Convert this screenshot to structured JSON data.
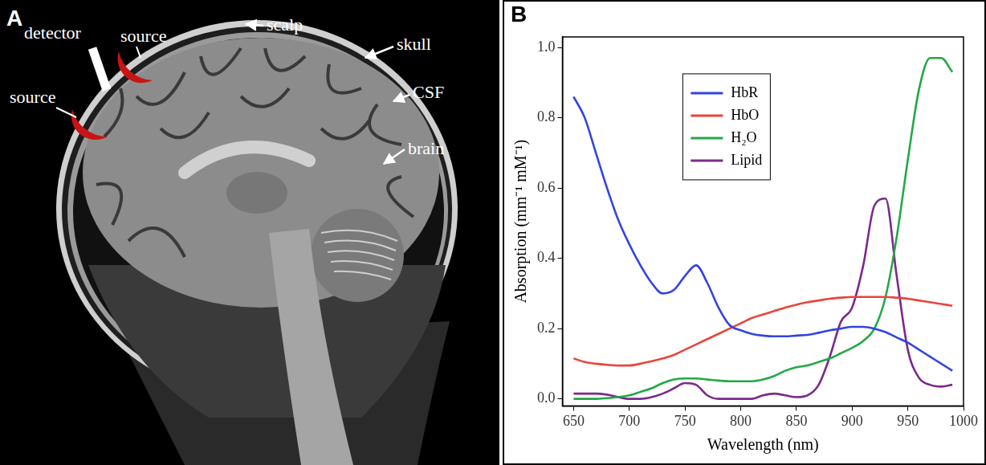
{
  "figure": {
    "panel_a": {
      "letter": "A",
      "structures": [
        "scalp",
        "skull",
        "CSF",
        "brain"
      ],
      "probe": {
        "detector": "detector",
        "sources": [
          "source",
          "source"
        ]
      }
    },
    "panel_b": {
      "letter": "B"
    }
  },
  "chart_data": {
    "type": "line",
    "xlabel": "Wavelength (nm)",
    "ylabel": "Absorption (mm⁻¹ mM⁻¹)",
    "x": [
      650,
      660,
      670,
      680,
      690,
      700,
      710,
      720,
      730,
      740,
      750,
      760,
      770,
      780,
      790,
      800,
      810,
      820,
      830,
      840,
      850,
      860,
      870,
      880,
      890,
      900,
      910,
      920,
      930,
      940,
      950,
      960,
      970,
      980,
      990
    ],
    "series": [
      {
        "name": "HbR",
        "color": "#3344e0",
        "values": [
          0.86,
          0.8,
          0.7,
          0.6,
          0.51,
          0.44,
          0.38,
          0.33,
          0.3,
          0.31,
          0.35,
          0.38,
          0.33,
          0.26,
          0.21,
          0.195,
          0.185,
          0.18,
          0.178,
          0.178,
          0.18,
          0.182,
          0.188,
          0.195,
          0.2,
          0.205,
          0.205,
          0.2,
          0.19,
          0.175,
          0.16,
          0.14,
          0.12,
          0.1,
          0.08
        ]
      },
      {
        "name": "HbO",
        "color": "#e8453c",
        "values": [
          0.115,
          0.105,
          0.1,
          0.097,
          0.095,
          0.095,
          0.1,
          0.107,
          0.115,
          0.125,
          0.14,
          0.155,
          0.17,
          0.185,
          0.2,
          0.215,
          0.23,
          0.24,
          0.25,
          0.26,
          0.268,
          0.275,
          0.28,
          0.285,
          0.288,
          0.29,
          0.29,
          0.29,
          0.29,
          0.288,
          0.285,
          0.28,
          0.275,
          0.27,
          0.265
        ]
      },
      {
        "name": "H₂O",
        "color": "#22a846",
        "values": [
          0.0,
          0.0,
          0.0,
          0.002,
          0.005,
          0.01,
          0.02,
          0.03,
          0.045,
          0.055,
          0.058,
          0.058,
          0.055,
          0.052,
          0.05,
          0.05,
          0.05,
          0.055,
          0.065,
          0.08,
          0.09,
          0.095,
          0.105,
          0.115,
          0.13,
          0.145,
          0.165,
          0.2,
          0.29,
          0.46,
          0.68,
          0.88,
          0.97,
          0.97,
          0.93
        ]
      },
      {
        "name": "Lipid",
        "color": "#7b2a8a",
        "values": [
          0.015,
          0.015,
          0.015,
          0.012,
          0.005,
          0.0,
          0.0,
          0.005,
          0.015,
          0.03,
          0.045,
          0.04,
          0.01,
          0.0,
          0.0,
          0.0,
          0.0,
          0.01,
          0.015,
          0.01,
          0.005,
          0.01,
          0.04,
          0.12,
          0.22,
          0.26,
          0.38,
          0.55,
          0.57,
          0.35,
          0.14,
          0.06,
          0.04,
          0.035,
          0.04
        ]
      }
    ],
    "xlim": [
      640,
      1000
    ],
    "xticks": [
      650,
      700,
      750,
      800,
      850,
      900,
      950,
      1000
    ],
    "ylim": [
      -0.02,
      1.03
    ],
    "yticks": [
      {
        "value": 0,
        "label": "0.0"
      },
      0.2,
      0.4,
      0.6,
      0.8,
      {
        "value": 1,
        "label": "1.0"
      }
    ],
    "grid": false,
    "legend": "top"
  }
}
